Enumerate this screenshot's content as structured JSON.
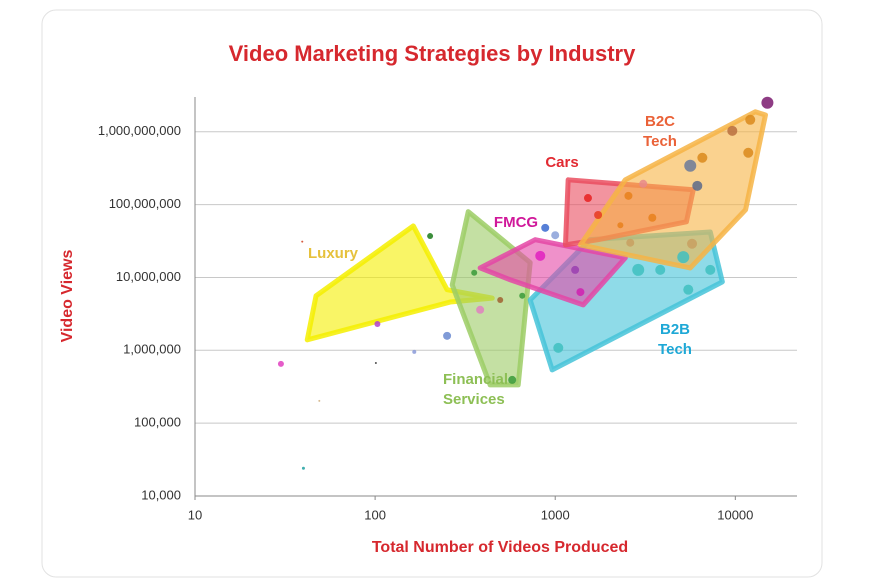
{
  "chart_data": {
    "type": "scatter",
    "title": "Video Marketing Strategies by Industry",
    "x_label": "Total Number of Videos Produced",
    "y_label": "Video Views",
    "x_log": true,
    "y_log": true,
    "grid": true,
    "xlim": [
      10,
      22000
    ],
    "ylim": [
      10000,
      3000000000
    ],
    "xticks": [
      10,
      100,
      1000,
      10000
    ],
    "yticks": [
      {
        "value": 10000,
        "label": "10,000"
      },
      {
        "value": 100000,
        "label": "100,000"
      },
      {
        "value": 1000000,
        "label": "1,000,000"
      },
      {
        "value": 10000000,
        "label": "10,000,000"
      },
      {
        "value": 100000000,
        "label": "100,000,000"
      },
      {
        "value": 1000000000,
        "label": "1,000,000,000"
      }
    ],
    "regions": [
      {
        "name": "Luxury",
        "color": "#f5ee00",
        "label_color": "#e6c13c",
        "x": [
          42,
          47,
          163,
          251,
          447,
          261
        ],
        "y": [
          1390000,
          5600000,
          51000000,
          6800000,
          5200000,
          4600000
        ]
      },
      {
        "name": "Financial Services",
        "color": "#9ccc65",
        "label_color": "#8dbf55",
        "x": [
          329,
          726,
          623,
          435,
          268
        ],
        "y": [
          80000000,
          16000000,
          335000,
          335000,
          7900000
        ]
      },
      {
        "name": "B2B Tech",
        "color": "#45c3d8",
        "label_color": "#1ea8d6",
        "x": [
          726,
          1560,
          7260,
          8470,
          962
        ],
        "y": [
          4900000,
          33000000,
          42000000,
          8700000,
          538000
        ]
      },
      {
        "name": "FMCG",
        "color": "#e447a6",
        "label_color": "#d0189a",
        "x": [
          383,
          774,
          2450,
          1430,
          562
        ],
        "y": [
          13500000,
          33000000,
          18600000,
          4200000,
          9300000
        ]
      },
      {
        "name": "Cars",
        "color": "#ea4d5f",
        "label_color": "#e22a32",
        "x": [
          1180,
          5840,
          5350,
          1730,
          1140
        ],
        "y": [
          219000000,
          160000000,
          58000000,
          33000000,
          28000000
        ]
      },
      {
        "name": "B2C Tech",
        "color": "#f6b445",
        "label_color": "#ea6238",
        "x": [
          1380,
          2450,
          12900,
          14700,
          11400,
          5620
        ],
        "y": [
          28000000,
          219000000,
          1880000000,
          1700000000,
          85000000,
          13500000
        ]
      }
    ],
    "x": [
      15070,
      12100,
      9620,
      11800,
      5620,
      6560,
      6150,
      3080,
      2550,
      3460,
      1520,
      1730,
      2300,
      5750,
      5140,
      3830,
      2890,
      7260,
      5480,
      2610,
      880,
      1000,
      826,
      1290,
      1380,
      1040,
      495,
      577,
      355,
      383,
      202,
      251,
      103,
      165,
      30,
      40,
      39.4,
      101,
      49,
      656
    ],
    "values": [
      2500000000,
      1460000000,
      1030000000,
      515000000,
      341000000,
      440000000,
      181000000,
      193000000,
      132000000,
      66000000,
      123000000,
      72000000,
      52000000,
      29000000,
      19000000,
      12700000,
      12700000,
      12700000,
      6800000,
      30000000,
      48000000,
      38000000,
      19800000,
      12700000,
      6300000,
      1080000,
      4900000,
      392000,
      11600000,
      3600000,
      37000000,
      1580000,
      2300000,
      950000,
      650000,
      24000,
      31000000,
      670000,
      202000,
      5600000
    ],
    "sizes": [
      6,
      5,
      5,
      5,
      6,
      5,
      5,
      4,
      4,
      4,
      4,
      4,
      3,
      5,
      6,
      5,
      6,
      5,
      5,
      4,
      4,
      4,
      5,
      4,
      4,
      5,
      3,
      4,
      3,
      4,
      3,
      4,
      3,
      2,
      3,
      1.5,
      1,
      1,
      1,
      3
    ],
    "colors": [
      "#7a1a6e",
      "#d98a1c",
      "#b87040",
      "#d98a1c",
      "#6a7a9a",
      "#d98a1c",
      "#5a6a8a",
      "#e88a8a",
      "#e8801c",
      "#e8801c",
      "#e82020",
      "#e83a20",
      "#e8801c",
      "#c8a060",
      "#40c0c0",
      "#40c0c0",
      "#40c0c0",
      "#40c0c0",
      "#40c0c0",
      "#c8a060",
      "#3a6ad0",
      "#8aa0d8",
      "#e020c0",
      "#9a40b0",
      "#d020b0",
      "#40c0c0",
      "#a06030",
      "#3a9a3a",
      "#3a9a3a",
      "#e080c0",
      "#1a7a1a",
      "#6a8ad0",
      "#b040d0",
      "#8a9ad8",
      "#e040c0",
      "#20a0a0",
      "#d04020",
      "#303030",
      "#d0b080",
      "#3a9a3a"
    ]
  }
}
